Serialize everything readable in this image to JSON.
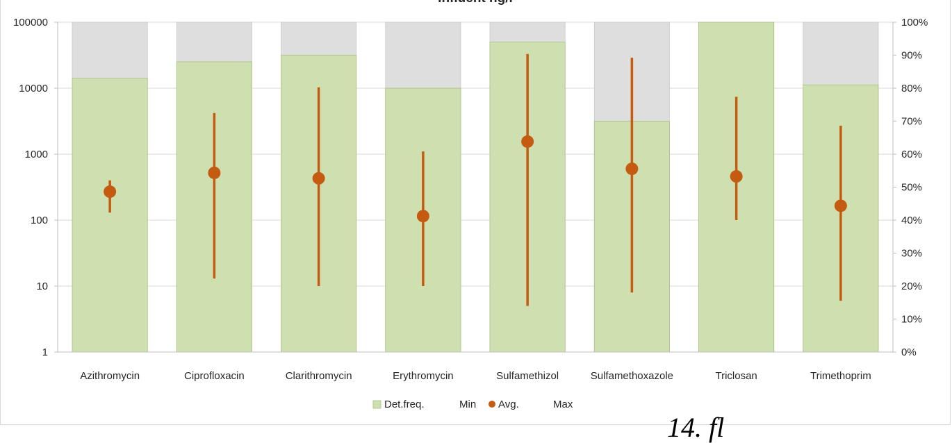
{
  "chart_data": {
    "type": "bar",
    "title": "Influent ng/l",
    "categories": [
      "Azithromycin",
      "Ciprofloxacin",
      "Clarithromycin",
      "Erythromycin",
      "Sulfamethizol",
      "Sulfamethoxazole",
      "Triclosan",
      "Trimethoprim"
    ],
    "y_left": {
      "scale": "log",
      "range": [
        1,
        100000
      ],
      "ticks": [
        "1",
        "10",
        "100",
        "1000",
        "10000",
        "100000"
      ]
    },
    "y_right": {
      "scale": "linear",
      "range": [
        0,
        100
      ],
      "unit": "%",
      "ticks": [
        "0%",
        "10%",
        "20%",
        "30%",
        "40%",
        "50%",
        "60%",
        "70%",
        "80%",
        "90%",
        "100%"
      ]
    },
    "series": [
      {
        "name": "Det.freq.",
        "type": "bar",
        "axis": "right",
        "color": "#cfe0b0",
        "values": [
          83,
          88,
          90,
          80,
          94,
          70,
          100,
          81
        ]
      },
      {
        "name": "Min",
        "type": "errorbar-low",
        "axis": "left",
        "values": [
          130,
          13,
          10,
          10,
          5,
          8,
          100,
          6
        ]
      },
      {
        "name": "Avg.",
        "type": "point",
        "axis": "left",
        "color": "#c55a11",
        "values": [
          270,
          520,
          430,
          115,
          1550,
          600,
          460,
          165
        ]
      },
      {
        "name": "Max",
        "type": "errorbar-high",
        "axis": "left",
        "values": [
          400,
          4200,
          10300,
          1100,
          33000,
          29000,
          7400,
          2700
        ]
      }
    ],
    "background_bar_color": "#dedede",
    "grid": true,
    "legend_position": "bottom"
  },
  "caption_fragment": "14. fl"
}
